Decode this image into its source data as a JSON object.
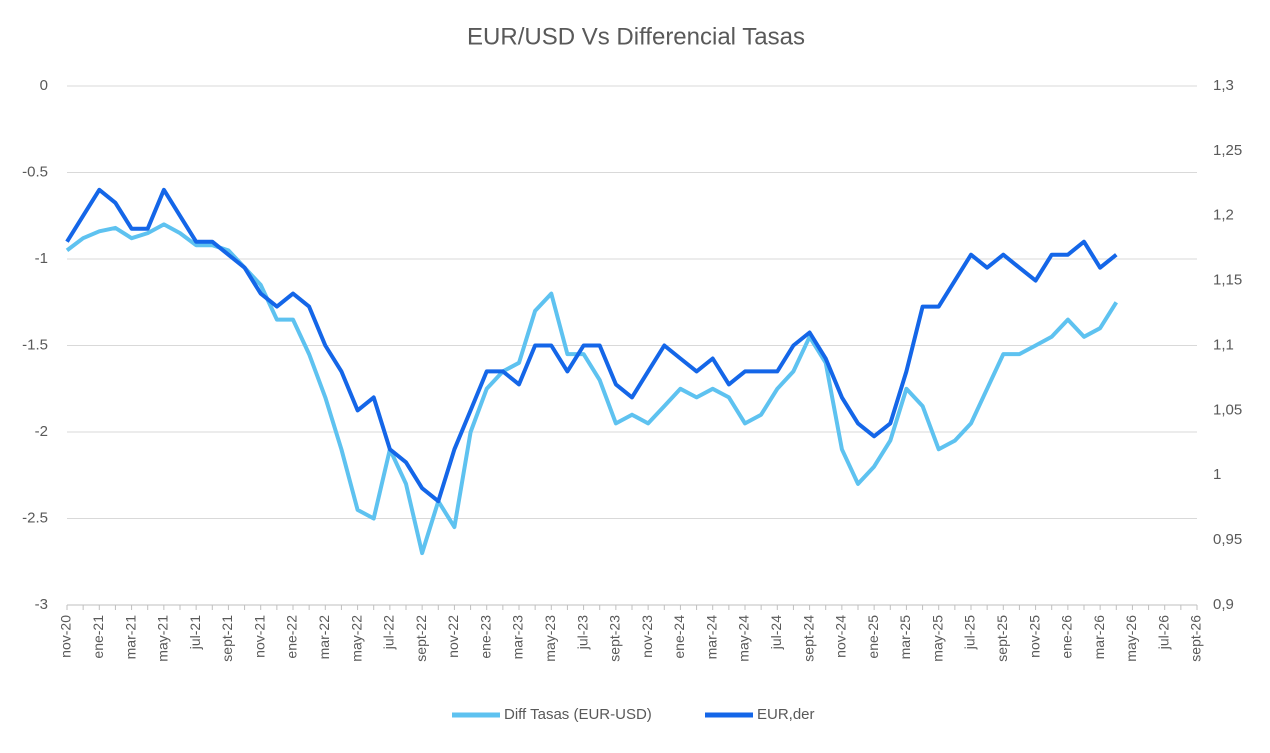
{
  "chart_data": {
    "type": "line",
    "title": "EUR/USD Vs Differencial Tasas",
    "categories": [
      "nov-20",
      null,
      "ene-21",
      null,
      "mar-21",
      null,
      "may-21",
      null,
      "jul-21",
      null,
      "sept-21",
      null,
      "nov-21",
      null,
      "ene-22",
      null,
      "mar-22",
      null,
      "may-22",
      null,
      "jul-22",
      null,
      "sept-22",
      null,
      "nov-22",
      null,
      "ene-23",
      null,
      "mar-23",
      null,
      "may-23",
      null,
      "jul-23",
      null,
      "sept-23",
      null,
      "nov-23",
      null,
      "ene-24",
      null,
      "mar-24",
      null,
      "may-24",
      null,
      "jul-24",
      null,
      "sept-24",
      null,
      "nov-24",
      null,
      "ene-25",
      null,
      "mar-25",
      null,
      "may-25",
      null,
      "jul-25",
      null,
      "sept-25",
      null,
      "nov-25",
      null,
      "ene-26",
      null,
      "mar-26",
      null,
      "may-26",
      null,
      "jul-26",
      null,
      "sept-26"
    ],
    "series": [
      {
        "name": "Diff Tasas (EUR-USD)",
        "color": "#5ec2f0",
        "values": [
          -0.95,
          -0.88,
          -0.84,
          -0.82,
          -0.88,
          -0.85,
          -0.8,
          -0.85,
          -0.92,
          -0.92,
          -0.95,
          -1.05,
          -1.15,
          -1.35,
          -1.35,
          -1.55,
          -1.8,
          -2.1,
          -2.45,
          -2.5,
          -2.1,
          -2.3,
          -2.7,
          -2.4,
          -2.55,
          -2.0,
          -1.75,
          -1.65,
          -1.6,
          -1.3,
          -1.2,
          -1.55,
          -1.55,
          -1.7,
          -1.95,
          -1.9,
          -1.95,
          -1.85,
          -1.75,
          -1.8,
          -1.75,
          -1.8,
          -1.95,
          -1.9,
          -1.75,
          -1.65,
          -1.45,
          -1.6,
          -2.1,
          -2.3,
          -2.2,
          -2.05,
          -1.75,
          -1.85,
          -2.1,
          -2.05,
          -1.95,
          -1.75,
          -1.55,
          -1.55,
          -1.5,
          -1.45,
          -1.35,
          -1.45,
          -1.4,
          -1.25,
          null,
          null,
          null,
          null,
          null
        ]
      },
      {
        "name": "EUR,der",
        "color": "#1466e8",
        "axis": "y2",
        "values": [
          1.18,
          1.2,
          1.22,
          1.21,
          1.19,
          1.19,
          1.22,
          1.2,
          1.18,
          1.18,
          1.17,
          1.16,
          1.14,
          1.13,
          1.14,
          1.13,
          1.1,
          1.08,
          1.05,
          1.06,
          1.02,
          1.01,
          0.99,
          0.98,
          1.02,
          1.05,
          1.08,
          1.08,
          1.07,
          1.1,
          1.1,
          1.08,
          1.1,
          1.1,
          1.07,
          1.06,
          1.08,
          1.1,
          1.09,
          1.08,
          1.09,
          1.07,
          1.08,
          1.08,
          1.08,
          1.1,
          1.11,
          1.09,
          1.06,
          1.04,
          1.03,
          1.04,
          1.08,
          1.13,
          1.13,
          1.15,
          1.17,
          1.16,
          1.17,
          1.16,
          1.15,
          1.17,
          1.17,
          1.18,
          1.16,
          1.17,
          null,
          null,
          null,
          null,
          null
        ]
      }
    ],
    "ylim": [
      -3,
      0
    ],
    "yticks": [
      0,
      -0.5,
      -1,
      -1.5,
      -2,
      -2.5,
      -3
    ],
    "y2lim": [
      0.9,
      1.3
    ],
    "y2ticks": [
      {
        "value": 1.3,
        "label": "1,3"
      },
      {
        "value": 1.25,
        "label": "1,25"
      },
      {
        "value": 1.2,
        "label": "1,2"
      },
      {
        "value": 1.15,
        "label": "1,15"
      },
      {
        "value": 1.1,
        "label": "1,1"
      },
      {
        "value": 1.05,
        "label": "1,05"
      },
      1,
      {
        "value": 0.95,
        "label": "0,95"
      },
      {
        "value": 0.9,
        "label": "0,9"
      }
    ],
    "grid": true,
    "legend": "bottom"
  }
}
